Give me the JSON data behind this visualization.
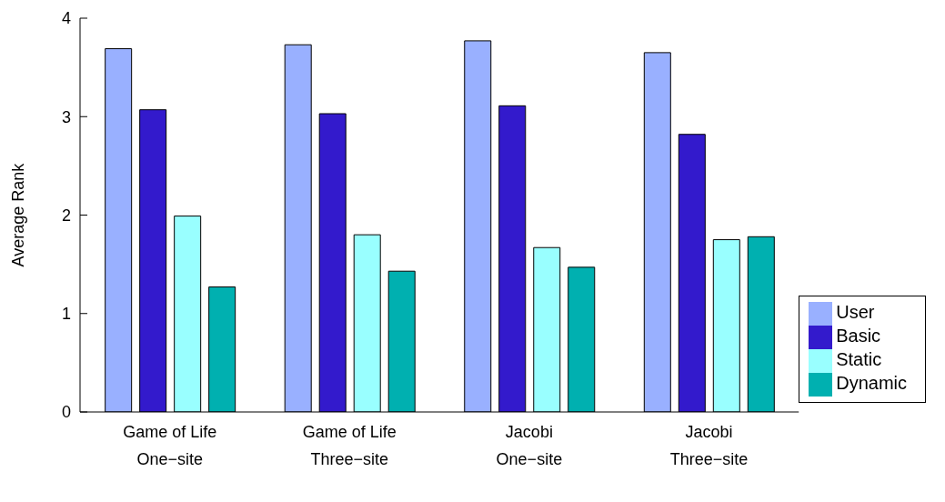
{
  "chart_data": {
    "type": "bar",
    "ylabel": "Average Rank",
    "categories": [
      "Game of Life\nOne−site",
      "Game of Life\nThree−site",
      "Jacobi\nOne−site",
      "Jacobi\nThree−site"
    ],
    "series": [
      {
        "name": "User",
        "color": "#99b0ff",
        "values": [
          3.69,
          3.73,
          3.77,
          3.65
        ]
      },
      {
        "name": "Basic",
        "color": "#331acc",
        "values": [
          3.07,
          3.03,
          3.11,
          2.82
        ]
      },
      {
        "name": "Static",
        "color": "#99ffff",
        "values": [
          1.99,
          1.8,
          1.67,
          1.75
        ]
      },
      {
        "name": "Dynamic",
        "color": "#00b0b0",
        "values": [
          1.27,
          1.43,
          1.47,
          1.78
        ]
      }
    ],
    "ylim": [
      0,
      4
    ],
    "yticks": [
      0,
      1,
      2,
      3,
      4
    ],
    "grid": false,
    "legend": "right"
  }
}
